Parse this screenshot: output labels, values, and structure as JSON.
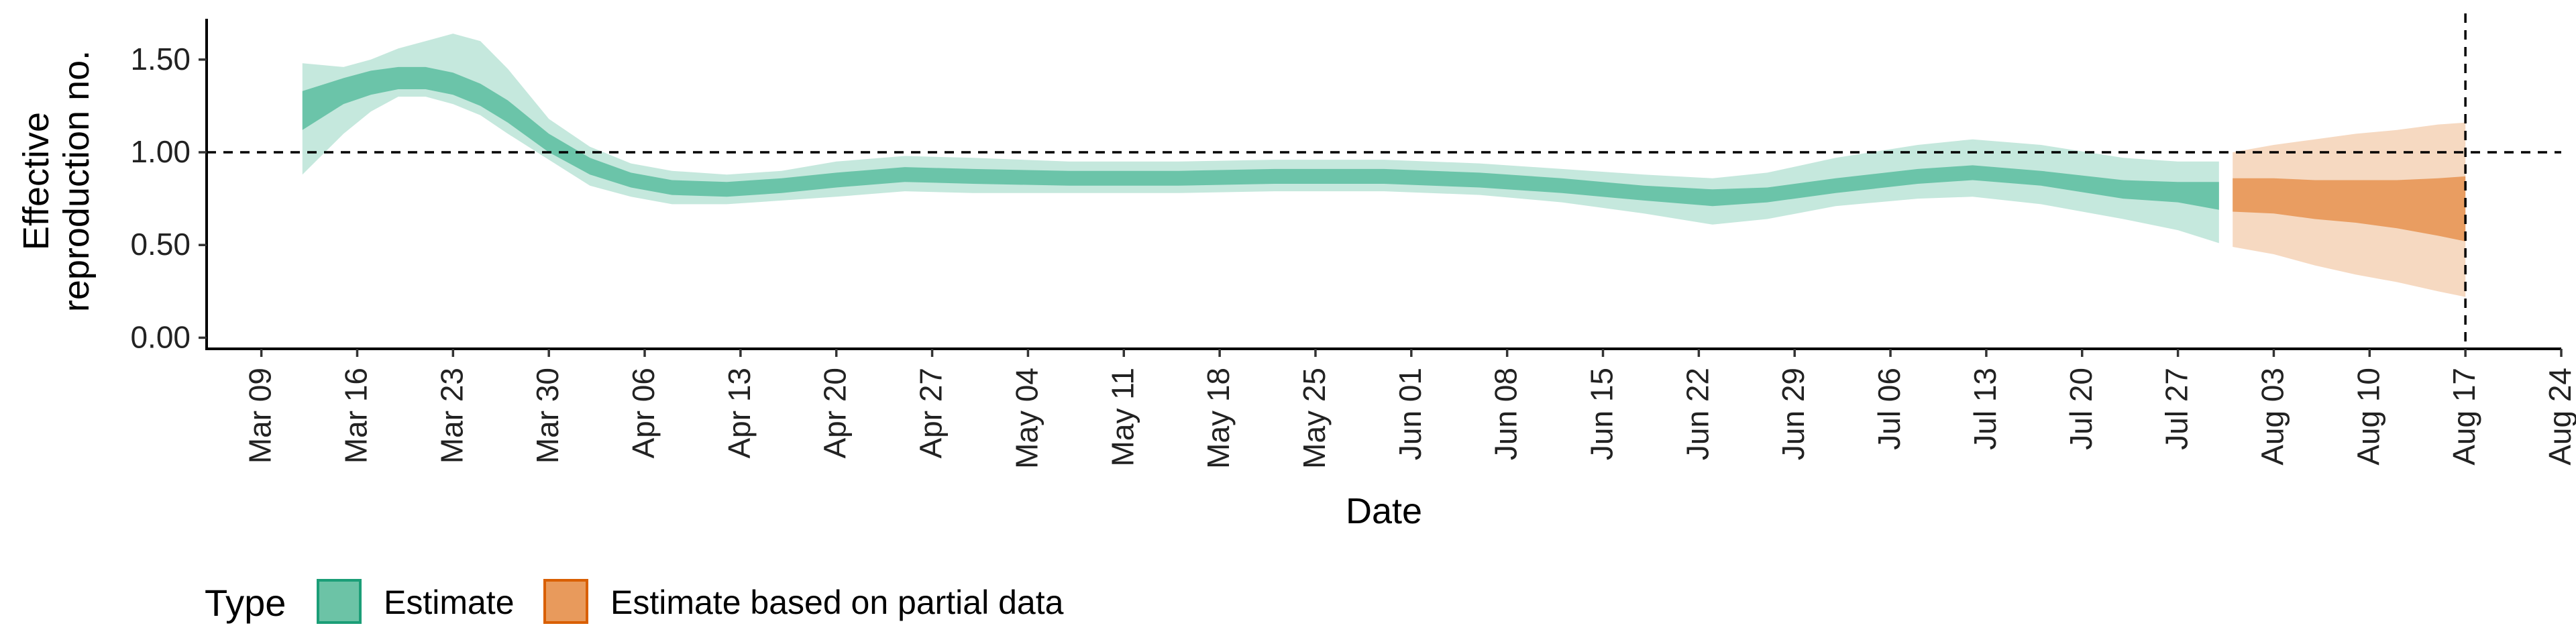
{
  "chart_data": {
    "type": "area",
    "title": "",
    "xlabel": "Date",
    "ylabel_lines": [
      "Effective",
      "reproduction no."
    ],
    "x_ticks": [
      "Mar 09",
      "Mar 16",
      "Mar 23",
      "Mar 30",
      "Apr 06",
      "Apr 13",
      "Apr 20",
      "Apr 27",
      "May 04",
      "May 11",
      "May 18",
      "May 25",
      "Jun 01",
      "Jun 08",
      "Jun 15",
      "Jun 22",
      "Jun 29",
      "Jul 06",
      "Jul 13",
      "Jul 20",
      "Jul 27",
      "Aug 03",
      "Aug 10",
      "Aug 17",
      "Aug 24"
    ],
    "x_range": [
      "2020-03-05",
      "2020-08-24"
    ],
    "y_ticks": [
      "0.00",
      "0.50",
      "1.00",
      "1.50"
    ],
    "ylim": [
      -0.06,
      1.72
    ],
    "reference_line_y": 1.0,
    "reference_line_date": "2020-08-17",
    "series": [
      {
        "name": "Estimate",
        "color": "#66c2a5",
        "points": [
          [
            "2020-03-12",
            1.23,
            1.12,
            1.33,
            0.88,
            1.48
          ],
          [
            "2020-03-15",
            1.33,
            1.26,
            1.4,
            1.1,
            1.46
          ],
          [
            "2020-03-17",
            1.38,
            1.31,
            1.44,
            1.22,
            1.5
          ],
          [
            "2020-03-19",
            1.4,
            1.34,
            1.46,
            1.3,
            1.56
          ],
          [
            "2020-03-21",
            1.4,
            1.34,
            1.46,
            1.3,
            1.6
          ],
          [
            "2020-03-23",
            1.37,
            1.31,
            1.43,
            1.26,
            1.64
          ],
          [
            "2020-03-25",
            1.31,
            1.25,
            1.37,
            1.2,
            1.6
          ],
          [
            "2020-03-27",
            1.22,
            1.16,
            1.28,
            1.1,
            1.45
          ],
          [
            "2020-03-30",
            1.05,
            1.0,
            1.1,
            0.96,
            1.18
          ],
          [
            "2020-04-02",
            0.92,
            0.88,
            0.97,
            0.82,
            1.03
          ],
          [
            "2020-04-05",
            0.85,
            0.81,
            0.89,
            0.76,
            0.94
          ],
          [
            "2020-04-08",
            0.81,
            0.77,
            0.85,
            0.72,
            0.9
          ],
          [
            "2020-04-12",
            0.8,
            0.76,
            0.84,
            0.72,
            0.88
          ],
          [
            "2020-04-16",
            0.82,
            0.78,
            0.86,
            0.74,
            0.9
          ],
          [
            "2020-04-20",
            0.85,
            0.81,
            0.89,
            0.76,
            0.95
          ],
          [
            "2020-04-25",
            0.88,
            0.84,
            0.92,
            0.79,
            0.98
          ],
          [
            "2020-04-30",
            0.87,
            0.83,
            0.91,
            0.78,
            0.97
          ],
          [
            "2020-05-07",
            0.86,
            0.82,
            0.9,
            0.78,
            0.95
          ],
          [
            "2020-05-15",
            0.86,
            0.82,
            0.9,
            0.78,
            0.95
          ],
          [
            "2020-05-22",
            0.87,
            0.83,
            0.91,
            0.79,
            0.96
          ],
          [
            "2020-05-30",
            0.87,
            0.83,
            0.91,
            0.79,
            0.96
          ],
          [
            "2020-06-06",
            0.85,
            0.81,
            0.89,
            0.77,
            0.94
          ],
          [
            "2020-06-12",
            0.82,
            0.78,
            0.86,
            0.73,
            0.91
          ],
          [
            "2020-06-18",
            0.78,
            0.74,
            0.82,
            0.67,
            0.88
          ],
          [
            "2020-06-23",
            0.75,
            0.71,
            0.8,
            0.61,
            0.86
          ],
          [
            "2020-06-27",
            0.77,
            0.73,
            0.81,
            0.64,
            0.89
          ],
          [
            "2020-07-02",
            0.82,
            0.78,
            0.86,
            0.71,
            0.97
          ],
          [
            "2020-07-08",
            0.87,
            0.83,
            0.91,
            0.75,
            1.04
          ],
          [
            "2020-07-12",
            0.89,
            0.85,
            0.93,
            0.76,
            1.07
          ],
          [
            "2020-07-17",
            0.86,
            0.82,
            0.9,
            0.72,
            1.04
          ],
          [
            "2020-07-23",
            0.8,
            0.75,
            0.85,
            0.64,
            0.97
          ],
          [
            "2020-07-27",
            0.78,
            0.73,
            0.84,
            0.58,
            0.95
          ],
          [
            "2020-07-30",
            0.76,
            0.69,
            0.84,
            0.51,
            0.95
          ]
        ]
      },
      {
        "name": "Estimate based on partial data",
        "color": "#e89a5c",
        "points": [
          [
            "2020-07-31",
            0.76,
            0.68,
            0.86,
            0.49,
            1.0
          ],
          [
            "2020-08-03",
            0.75,
            0.67,
            0.86,
            0.45,
            1.04
          ],
          [
            "2020-08-06",
            0.74,
            0.64,
            0.85,
            0.39,
            1.07
          ],
          [
            "2020-08-09",
            0.73,
            0.62,
            0.85,
            0.34,
            1.1
          ],
          [
            "2020-08-12",
            0.72,
            0.59,
            0.85,
            0.3,
            1.12
          ],
          [
            "2020-08-15",
            0.71,
            0.55,
            0.86,
            0.25,
            1.15
          ],
          [
            "2020-08-17",
            0.7,
            0.52,
            0.87,
            0.22,
            1.16
          ]
        ]
      }
    ],
    "legend": {
      "title": "Type",
      "placement": "bottom-left",
      "items": [
        {
          "label": "Estimate",
          "fill": "#6cc3a6",
          "border": "#1b9e77"
        },
        {
          "label": "Estimate based on partial data",
          "fill": "#e89a5c",
          "border": "#d95f02"
        }
      ]
    }
  }
}
